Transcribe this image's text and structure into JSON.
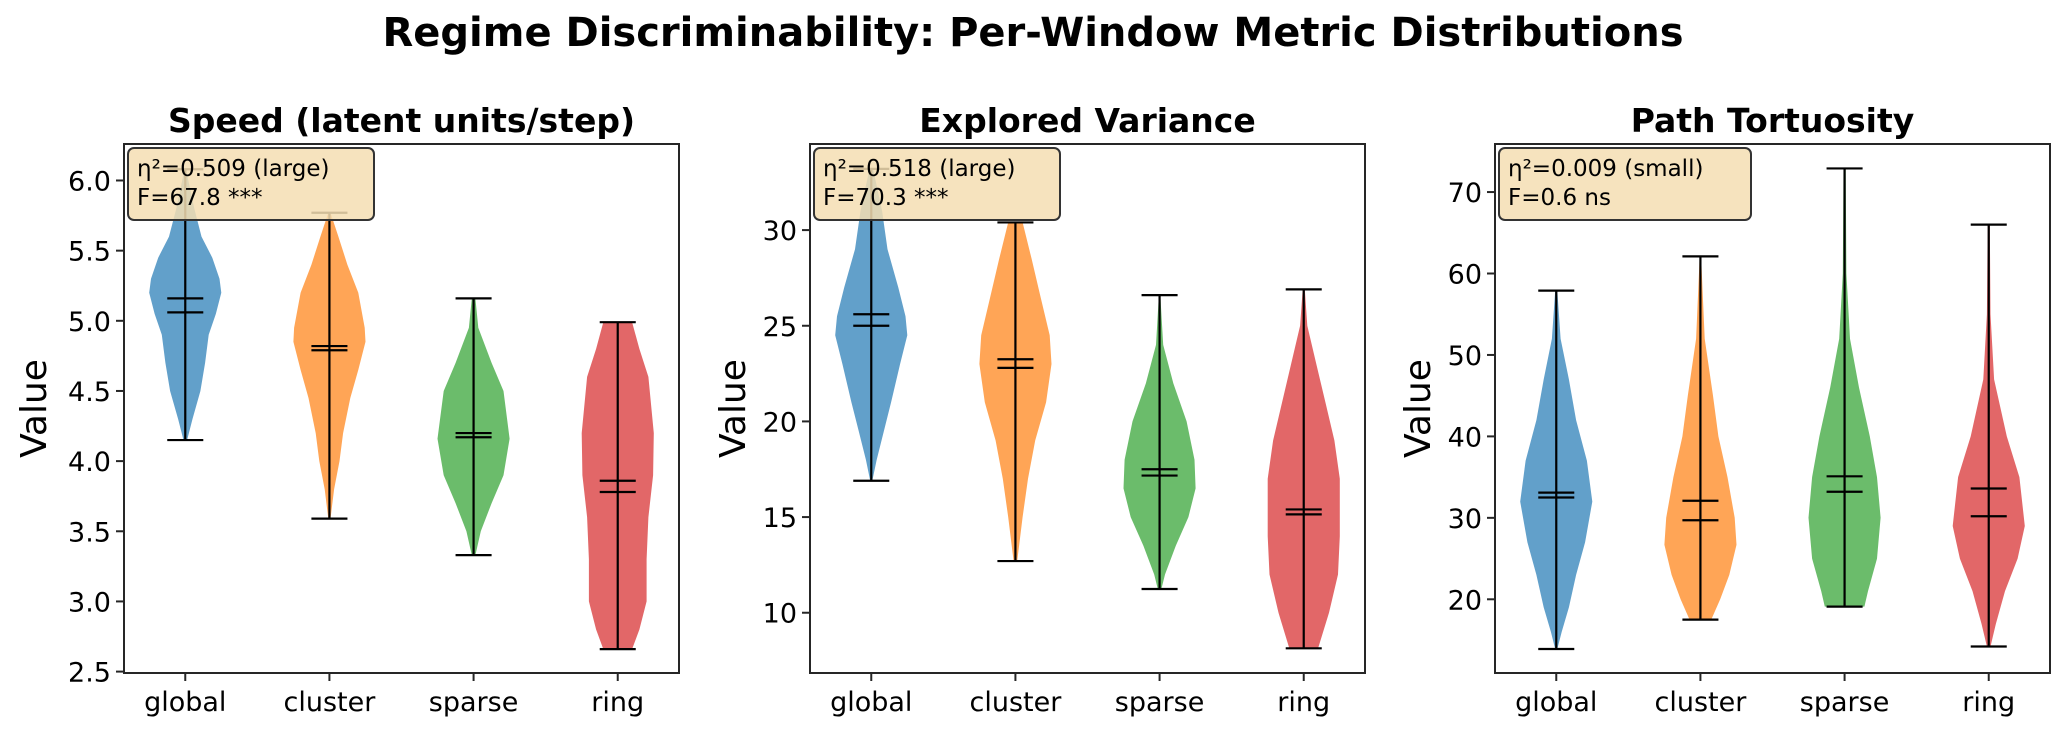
{
  "suptitle": "Regime Discriminability: Per-Window Metric Distributions",
  "colors": {
    "global": "#1f77b4",
    "cluster": "#ff7f0e",
    "sparse": "#2ca02c",
    "ring": "#d62728",
    "annotation_box": "#f5deb3"
  },
  "chart_data": [
    {
      "type": "violin",
      "title": "Speed (latent units/step)",
      "ylabel": "Value",
      "categories": [
        "global",
        "cluster",
        "sparse",
        "ring"
      ],
      "ylim": [
        2.49,
        6.26
      ],
      "yticks": [
        2.5,
        3.0,
        3.5,
        4.0,
        4.5,
        5.0,
        5.5,
        6.0
      ],
      "ytick_labels": [
        "2.5",
        "3.0",
        "3.5",
        "4.0",
        "4.5",
        "5.0",
        "5.5",
        "6.0"
      ],
      "annotation": [
        "η²=0.509 (large)",
        "F=67.8 ***"
      ],
      "series": [
        {
          "category": "global",
          "min": 4.15,
          "max": 6.08,
          "center_lines": [
            5.16,
            5.06
          ],
          "density": [
            [
              4.15,
              0.05
            ],
            [
              4.3,
              0.2
            ],
            [
              4.5,
              0.42
            ],
            [
              4.7,
              0.55
            ],
            [
              4.9,
              0.65
            ],
            [
              5.05,
              0.85
            ],
            [
              5.2,
              1
            ],
            [
              5.3,
              0.95
            ],
            [
              5.45,
              0.75
            ],
            [
              5.6,
              0.45
            ],
            [
              5.8,
              0.25
            ],
            [
              6.08,
              0.02
            ]
          ]
        },
        {
          "category": "cluster",
          "min": 3.59,
          "max": 5.77,
          "center_lines": [
            4.82,
            4.79
          ],
          "density": [
            [
              3.59,
              0.03
            ],
            [
              3.8,
              0.13
            ],
            [
              4.0,
              0.28
            ],
            [
              4.2,
              0.38
            ],
            [
              4.45,
              0.58
            ],
            [
              4.65,
              0.8
            ],
            [
              4.85,
              1
            ],
            [
              4.95,
              0.98
            ],
            [
              5.2,
              0.8
            ],
            [
              5.4,
              0.5
            ],
            [
              5.6,
              0.25
            ],
            [
              5.77,
              0.03
            ]
          ]
        },
        {
          "category": "sparse",
          "min": 3.33,
          "max": 5.16,
          "center_lines": [
            4.2,
            4.17
          ],
          "density": [
            [
              3.33,
              0.05
            ],
            [
              3.5,
              0.2
            ],
            [
              3.7,
              0.5
            ],
            [
              3.9,
              0.83
            ],
            [
              4.16,
              1
            ],
            [
              4.5,
              0.83
            ],
            [
              4.7,
              0.5
            ],
            [
              4.95,
              0.13
            ],
            [
              5.16,
              0.05
            ]
          ]
        },
        {
          "category": "ring",
          "min": 2.66,
          "max": 4.99,
          "center_lines": [
            3.86,
            3.78
          ],
          "density": [
            [
              2.66,
              0.4
            ],
            [
              2.8,
              0.6
            ],
            [
              3.0,
              0.8
            ],
            [
              3.3,
              0.8
            ],
            [
              3.6,
              0.85
            ],
            [
              3.9,
              0.98
            ],
            [
              4.2,
              1
            ],
            [
              4.6,
              0.85
            ],
            [
              4.8,
              0.6
            ],
            [
              4.99,
              0.4
            ]
          ]
        }
      ]
    },
    {
      "type": "violin",
      "title": "Explored Variance",
      "ylabel": "Value",
      "categories": [
        "global",
        "cluster",
        "sparse",
        "ring"
      ],
      "ylim": [
        6.85,
        34.5
      ],
      "yticks": [
        10,
        15,
        20,
        25,
        30
      ],
      "ytick_labels": [
        "10",
        "15",
        "20",
        "25",
        "30"
      ],
      "annotation": [
        "η²=0.518 (large)",
        "F=70.3 ***"
      ],
      "series": [
        {
          "category": "global",
          "min": 16.9,
          "max": 33.2,
          "center_lines": [
            25.6,
            25.0
          ],
          "density": [
            [
              16.9,
              0.03
            ],
            [
              18,
              0.15
            ],
            [
              19.5,
              0.35
            ],
            [
              21,
              0.55
            ],
            [
              23,
              0.8
            ],
            [
              24.5,
              1
            ],
            [
              25.5,
              0.95
            ],
            [
              27,
              0.75
            ],
            [
              29,
              0.45
            ],
            [
              31,
              0.3
            ],
            [
              33.2,
              0.05
            ]
          ]
        },
        {
          "category": "cluster",
          "min": 12.7,
          "max": 30.4,
          "center_lines": [
            23.25,
            22.8
          ],
          "density": [
            [
              12.7,
              0.05
            ],
            [
              15,
              0.2
            ],
            [
              17,
              0.35
            ],
            [
              19,
              0.55
            ],
            [
              21,
              0.85
            ],
            [
              23,
              1
            ],
            [
              24.5,
              0.95
            ],
            [
              26.5,
              0.7
            ],
            [
              28.5,
              0.45
            ],
            [
              30.4,
              0.2
            ]
          ]
        },
        {
          "category": "sparse",
          "min": 11.24,
          "max": 26.6,
          "center_lines": [
            17.5,
            17.17
          ],
          "density": [
            [
              11.24,
              0.05
            ],
            [
              12,
              0.15
            ],
            [
              13.5,
              0.45
            ],
            [
              15,
              0.8
            ],
            [
              16.5,
              1
            ],
            [
              18,
              0.97
            ],
            [
              20,
              0.75
            ],
            [
              22,
              0.38
            ],
            [
              24,
              0.1
            ],
            [
              26.6,
              0.02
            ]
          ]
        },
        {
          "category": "ring",
          "min": 8.14,
          "max": 26.9,
          "center_lines": [
            15.4,
            15.14
          ],
          "density": [
            [
              8.14,
              0.4
            ],
            [
              10,
              0.7
            ],
            [
              12,
              0.95
            ],
            [
              14,
              1
            ],
            [
              17,
              1
            ],
            [
              19,
              0.85
            ],
            [
              21,
              0.6
            ],
            [
              23,
              0.35
            ],
            [
              25,
              0.1
            ],
            [
              26.9,
              0.03
            ]
          ]
        }
      ]
    },
    {
      "type": "violin",
      "title": "Path Tortuosity",
      "ylabel": "Value",
      "categories": [
        "global",
        "cluster",
        "sparse",
        "ring"
      ],
      "ylim": [
        10.95,
        75.9
      ],
      "yticks": [
        20,
        30,
        40,
        50,
        60,
        70
      ],
      "ytick_labels": [
        "20",
        "30",
        "40",
        "50",
        "60",
        "70"
      ],
      "annotation": [
        "η²=0.009 (small)",
        "F=0.6 ns"
      ],
      "series": [
        {
          "category": "global",
          "min": 13.9,
          "max": 57.9,
          "center_lines": [
            33.1,
            32.5
          ],
          "density": [
            [
              13.9,
              0.03
            ],
            [
              16,
              0.15
            ],
            [
              19,
              0.35
            ],
            [
              23,
              0.55
            ],
            [
              27,
              0.8
            ],
            [
              32,
              1
            ],
            [
              37,
              0.85
            ],
            [
              42,
              0.55
            ],
            [
              47,
              0.35
            ],
            [
              52,
              0.12
            ],
            [
              57.9,
              0.03
            ]
          ]
        },
        {
          "category": "cluster",
          "min": 17.5,
          "max": 62.1,
          "center_lines": [
            32.1,
            29.7
          ],
          "density": [
            [
              17.5,
              0.3
            ],
            [
              20,
              0.55
            ],
            [
              23,
              0.8
            ],
            [
              26.7,
              1
            ],
            [
              30,
              0.95
            ],
            [
              35,
              0.75
            ],
            [
              40,
              0.5
            ],
            [
              45,
              0.35
            ],
            [
              52,
              0.12
            ],
            [
              62.1,
              0.02
            ]
          ]
        },
        {
          "category": "sparse",
          "min": 19.1,
          "max": 72.9,
          "center_lines": [
            35.1,
            33.2
          ],
          "density": [
            [
              19.1,
              0.55
            ],
            [
              21,
              0.65
            ],
            [
              25,
              0.9
            ],
            [
              30,
              1
            ],
            [
              35,
              0.9
            ],
            [
              40,
              0.7
            ],
            [
              46,
              0.4
            ],
            [
              52,
              0.15
            ],
            [
              60,
              0.05
            ],
            [
              72.9,
              0.03
            ]
          ]
        },
        {
          "category": "ring",
          "min": 14.2,
          "max": 66.0,
          "center_lines": [
            33.6,
            30.2
          ],
          "density": [
            [
              14.2,
              0.05
            ],
            [
              17,
              0.2
            ],
            [
              21,
              0.45
            ],
            [
              25,
              0.8
            ],
            [
              29,
              1
            ],
            [
              35,
              0.85
            ],
            [
              40,
              0.5
            ],
            [
              47,
              0.15
            ],
            [
              55,
              0.05
            ],
            [
              66,
              0.03
            ]
          ]
        }
      ]
    }
  ]
}
